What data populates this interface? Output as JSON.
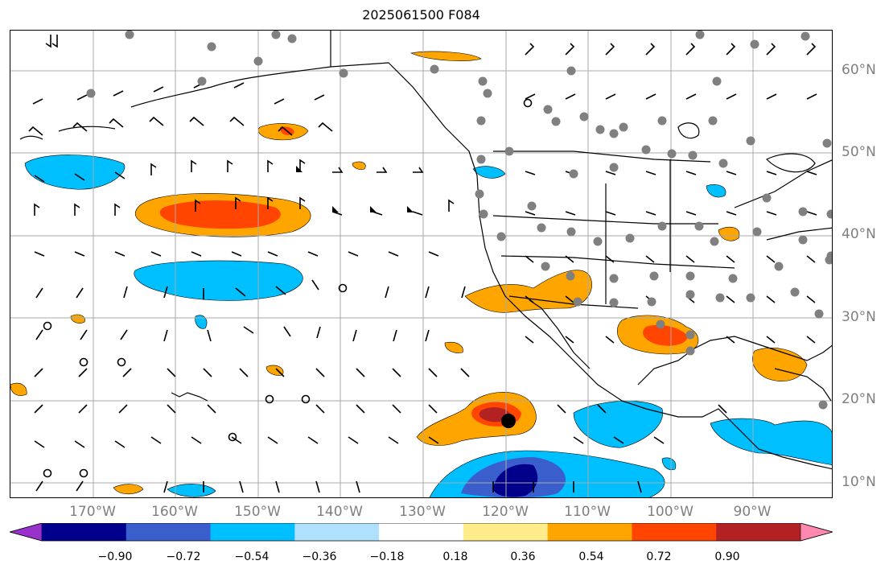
{
  "title": "2025061500 F084",
  "lat_labels": [
    "60°N",
    "50°N",
    "40°N",
    "30°N",
    "20°N",
    "10°N"
  ],
  "lon_labels": [
    "170°W",
    "160°W",
    "150°W",
    "140°W",
    "130°W",
    "120°W",
    "110°W",
    "100°W",
    "90°W"
  ],
  "colorbar": {
    "tick_labels": [
      "−0.90",
      "−0.72",
      "−0.54",
      "−0.36",
      "−0.18",
      "0.18",
      "0.36",
      "0.54",
      "0.72",
      "0.90"
    ],
    "colors": [
      "#9932cc",
      "#00008b",
      "#3a5fcd",
      "#00bfff",
      "#afe1fd",
      "#ffffff",
      "#ffec8b",
      "#ffa500",
      "#ff4500",
      "#b22222",
      "#ff88b0"
    ]
  },
  "grid": true,
  "colors": {
    "gridline": "#a9a9a9",
    "coast": "#000000",
    "station_marker": "#808080",
    "center_marker": "#000000"
  }
}
